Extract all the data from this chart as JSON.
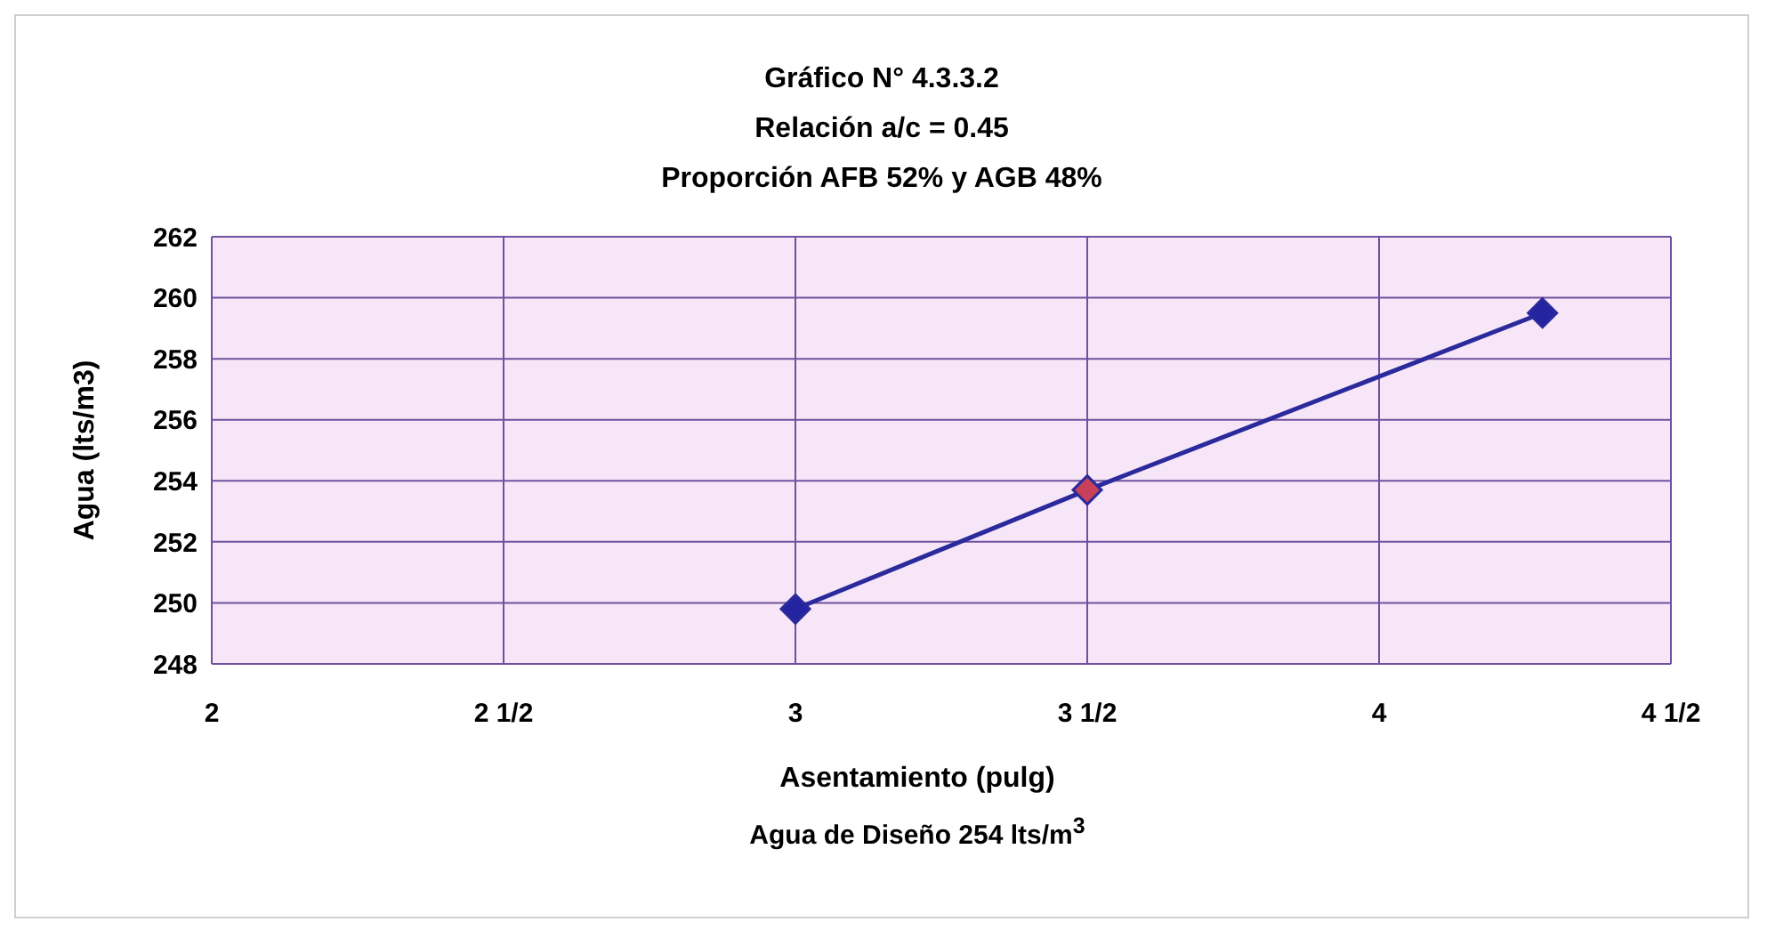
{
  "chart_data": {
    "type": "line",
    "title": "Gráfico N° 4.3.3.2",
    "subtitle": "Relación a/c = 0.45\nProporción AFB 52% y AGB 48%",
    "xlabel": "Asentamiento (pulg)",
    "ylabel": "Agua (lts/m3)",
    "annotations": [
      "Agua de Diseño 254 lts/m$^{3}$"
    ],
    "x": [
      3.0,
      3.5,
      4.28
    ],
    "series": [
      {
        "color": "#2a2a9c",
        "values": [
          249.8,
          253.7,
          259.5
        ],
        "colors": [
          "#2424a0",
          "#c8405a",
          "#2424a0"
        ]
      }
    ],
    "xlim": [
      2,
      4.5
    ],
    "xticks": [
      2,
      {
        "value": 2.5,
        "label": "2 1/2"
      },
      3,
      {
        "value": 3.5,
        "label": "3 1/2"
      },
      4,
      {
        "value": 4.5,
        "label": "4 1/2"
      }
    ],
    "ylim": [
      248,
      262
    ],
    "yticks": [
      248,
      250,
      252,
      254,
      256,
      258,
      260,
      262
    ],
    "grid": true,
    "marker": "diamond",
    "line_style": "solid"
  }
}
